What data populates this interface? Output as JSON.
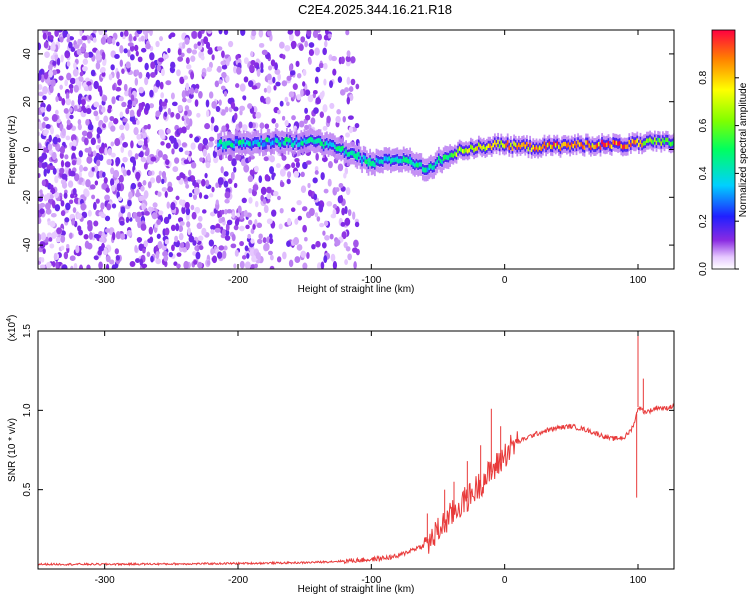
{
  "chart_data": [
    {
      "type": "heatmap",
      "title": "C2E4.2025.344.16.21.R18",
      "xlabel": "Height of straight line (km)",
      "ylabel": "Frequency (Hz)",
      "xlim": [
        -350,
        127
      ],
      "ylim": [
        -50,
        50
      ],
      "xticks": [
        {
          "value": -300,
          "label": "-300"
        },
        {
          "value": -200,
          "label": "-200"
        },
        {
          "value": -100,
          "label": "-100"
        },
        {
          "value": 0,
          "label": "0"
        },
        {
          "value": 100,
          "label": "100"
        }
      ],
      "yticks": [
        {
          "value": -40,
          "label": "-40"
        },
        {
          "value": -20,
          "label": "-20"
        },
        {
          "value": 0,
          "label": "0"
        },
        {
          "value": 20,
          "label": "20"
        },
        {
          "value": 40,
          "label": "40"
        }
      ],
      "colorbar": {
        "label": "Normalized spectral amplitude",
        "range": [
          0,
          1
        ],
        "ticks": [
          {
            "value": 0.0,
            "label": "0.0"
          },
          {
            "value": 0.2,
            "label": "0.2"
          },
          {
            "value": 0.4,
            "label": "0.4"
          },
          {
            "value": 0.6,
            "label": "0.6"
          },
          {
            "value": 0.8,
            "label": "0.8"
          }
        ]
      },
      "ridge": [
        {
          "x": -210,
          "y": 2,
          "a": 0.35
        },
        {
          "x": -180,
          "y": 3,
          "a": 0.3
        },
        {
          "x": -155,
          "y": 3,
          "a": 0.35
        },
        {
          "x": -140,
          "y": 3,
          "a": 0.4
        },
        {
          "x": -125,
          "y": 1,
          "a": 0.4
        },
        {
          "x": -110,
          "y": -3,
          "a": 0.4
        },
        {
          "x": -100,
          "y": -6,
          "a": 0.35
        },
        {
          "x": -85,
          "y": -4,
          "a": 0.4
        },
        {
          "x": -70,
          "y": -5,
          "a": 0.4
        },
        {
          "x": -58,
          "y": -9,
          "a": 0.35
        },
        {
          "x": -50,
          "y": -5,
          "a": 0.45
        },
        {
          "x": -40,
          "y": -2,
          "a": 0.6
        },
        {
          "x": -30,
          "y": 0,
          "a": 0.7
        },
        {
          "x": -20,
          "y": 1,
          "a": 0.75
        },
        {
          "x": -5,
          "y": 2,
          "a": 0.75
        },
        {
          "x": 20,
          "y": 1,
          "a": 0.8
        },
        {
          "x": 60,
          "y": 2,
          "a": 0.85
        },
        {
          "x": 90,
          "y": 2,
          "a": 0.95
        },
        {
          "x": 110,
          "y": 3,
          "a": 0.6
        },
        {
          "x": 127,
          "y": 3,
          "a": 0.5
        }
      ]
    },
    {
      "type": "line",
      "xlabel": "Height of straight line (km)",
      "ylabel": "SNR (10 * v/v)",
      "multiplier_label": "(x10",
      "multiplier_exp": "4",
      "multiplier_close": ")",
      "xlim": [
        -350,
        127
      ],
      "ylim": [
        0,
        15000
      ],
      "xticks": [
        {
          "value": -300,
          "label": "-300"
        },
        {
          "value": -200,
          "label": "-200"
        },
        {
          "value": -100,
          "label": "-100"
        },
        {
          "value": 0,
          "label": "0"
        },
        {
          "value": 100,
          "label": "100"
        }
      ],
      "yticks": [
        {
          "value": 5000,
          "label": "0.5"
        },
        {
          "value": 10000,
          "label": "1.0"
        },
        {
          "value": 15000,
          "label": "1.5"
        }
      ],
      "series": [
        {
          "name": "SNR",
          "color": "#e83a3a",
          "x": [
            -350,
            -300,
            -250,
            -200,
            -150,
            -120,
            -100,
            -90,
            -80,
            -70,
            -60,
            -55,
            -50,
            -45,
            -40,
            -35,
            -30,
            -25,
            -20,
            -15,
            -10,
            -5,
            0,
            5,
            10,
            20,
            30,
            40,
            50,
            60,
            70,
            80,
            90,
            95,
            98,
            100,
            102,
            105,
            110,
            115,
            120,
            127
          ],
          "y": [
            300,
            300,
            320,
            350,
            400,
            500,
            600,
            700,
            800,
            1200,
            1500,
            1800,
            2400,
            2900,
            3400,
            3900,
            4300,
            4700,
            5200,
            5700,
            6100,
            6600,
            7200,
            7700,
            8000,
            8400,
            8700,
            8900,
            9000,
            8800,
            8500,
            8200,
            8300,
            8800,
            9400,
            10200,
            10100,
            9900,
            10000,
            10200,
            10100,
            10300
          ]
        }
      ],
      "spikes": [
        {
          "x": -58,
          "y": 3500
        },
        {
          "x": -45,
          "y": 5000
        },
        {
          "x": -38,
          "y": 5500
        },
        {
          "x": -28,
          "y": 6800
        },
        {
          "x": -18,
          "y": 7800
        },
        {
          "x": -10,
          "y": 10100
        },
        {
          "x": -3,
          "y": 9000
        },
        {
          "x": 100,
          "y": 15000
        },
        {
          "x": 99,
          "y": 4500
        },
        {
          "x": 104,
          "y": 12000
        }
      ]
    }
  ]
}
